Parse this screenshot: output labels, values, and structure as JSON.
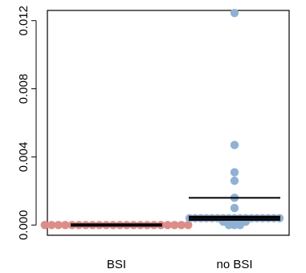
{
  "chart_data": {
    "type": "scatter",
    "title": "",
    "xlabel": "",
    "ylabel": "",
    "ylim": [
      -0.0006,
      0.0126
    ],
    "yticks": [
      0.0,
      0.004,
      0.008,
      0.012
    ],
    "ytick_labels": [
      "0.000",
      "0.004",
      "0.008",
      "0.012"
    ],
    "categories": [
      "BSI",
      "no BSI"
    ],
    "grid": false,
    "legend": "none",
    "groups": [
      {
        "category": "BSI",
        "color": "#e08b86",
        "points": [
          0,
          0,
          0,
          0,
          0,
          0,
          0,
          0,
          0,
          0,
          0,
          0,
          0,
          0,
          0,
          0,
          0,
          0,
          0,
          0,
          0,
          0
        ],
        "summary_lines": [
          0.0,
          0.0
        ]
      },
      {
        "category": "no BSI",
        "color": "#8fb1d6",
        "points": [
          0.01245,
          0.0047,
          0.0031,
          0.0026,
          0.0016,
          0.001,
          0.0004,
          0.0004,
          0.0004,
          0.0004,
          0.0004,
          0.0004,
          0.0004,
          0.0004,
          0.0004,
          0.0004,
          0.0004,
          0.0004,
          0.0004,
          0.0004,
          0.0004,
          0.0004,
          0.0004,
          0.0002,
          0.0002,
          0.0002,
          0.0002,
          0.0002,
          0.0001,
          0.0001,
          0.0,
          0.0,
          0.0
        ],
        "summary_lines": [
          0.0016,
          0.00045,
          0.0003
        ]
      }
    ]
  }
}
